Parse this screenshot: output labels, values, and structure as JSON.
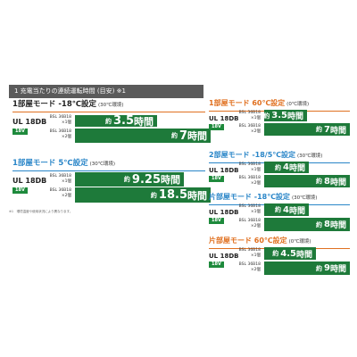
{
  "header": "1 充電当たりの連続運転時間 (目安) ※1",
  "footnote": "※1　環境温度や使用状況により異なります。",
  "colors": {
    "blue": "#2a86c8",
    "orange": "#e07020",
    "green": "#1e7a3a"
  },
  "sections": [
    {
      "title": "1部屋モード -18℃設定",
      "cond": "(30℃環境)",
      "color": "orange",
      "model": "UL 18DB",
      "volt": "18V",
      "rows": [
        {
          "bsl": "BSL 36B18",
          "count": "×1個",
          "pre": "約",
          "num": "3.5",
          "unit": "時間"
        },
        {
          "bsl": "BSL 36B18",
          "count": "×2個",
          "pre": "約",
          "num": "7",
          "unit": "時間"
        }
      ]
    },
    {
      "title": "1部屋モード 5℃設定",
      "cond": "(30℃環境)",
      "color": "blue",
      "model": "UL 18DB",
      "volt": "18V",
      "rows": [
        {
          "bsl": "BSL 36B18",
          "count": "×1個",
          "pre": "約",
          "num": "9.25",
          "unit": "時間"
        },
        {
          "bsl": "BSL 36B18",
          "count": "×2個",
          "pre": "約",
          "num": "18.5",
          "unit": "時間"
        }
      ]
    },
    {
      "title": "1部屋モード 60℃設定",
      "cond": "(0℃環境)",
      "color": "orange",
      "model": "UL 18DB",
      "volt": "18V",
      "rows": [
        {
          "bsl": "BSL 36B18",
          "count": "×1個",
          "pre": "約",
          "num": "3.5",
          "unit": "時間"
        },
        {
          "bsl": "BSL 36B18",
          "count": "×2個",
          "pre": "約",
          "num": "7",
          "unit": "時間"
        }
      ]
    },
    {
      "title": "2部屋モード -18/5℃設定",
      "cond": "(30℃環境)",
      "color": "blue",
      "model": "UL 18DB",
      "volt": "18V",
      "rows": [
        {
          "bsl": "BSL 36B18",
          "count": "×1個",
          "pre": "約",
          "num": "4",
          "unit": "時間"
        },
        {
          "bsl": "BSL 36B18",
          "count": "×2個",
          "pre": "約",
          "num": "8",
          "unit": "時間"
        }
      ]
    },
    {
      "title": "片部屋モード -18℃設定",
      "cond": "(30℃環境)",
      "color": "blue",
      "model": "UL 18DB",
      "volt": "18V",
      "rows": [
        {
          "bsl": "BSL 36B18",
          "count": "×1個",
          "pre": "約",
          "num": "4",
          "unit": "時間"
        },
        {
          "bsl": "BSL 36B18",
          "count": "×2個",
          "pre": "約",
          "num": "8",
          "unit": "時間"
        }
      ]
    },
    {
      "title": "片部屋モード 60℃設定",
      "cond": "(0℃環境)",
      "color": "orange",
      "model": "UL 18DB",
      "volt": "18V",
      "rows": [
        {
          "bsl": "BSL 36B18",
          "count": "×1個",
          "pre": "約",
          "num": "4.5",
          "unit": "時間"
        },
        {
          "bsl": "BSL 36B18",
          "count": "×2個",
          "pre": "約",
          "num": "9",
          "unit": "時間"
        }
      ]
    }
  ]
}
